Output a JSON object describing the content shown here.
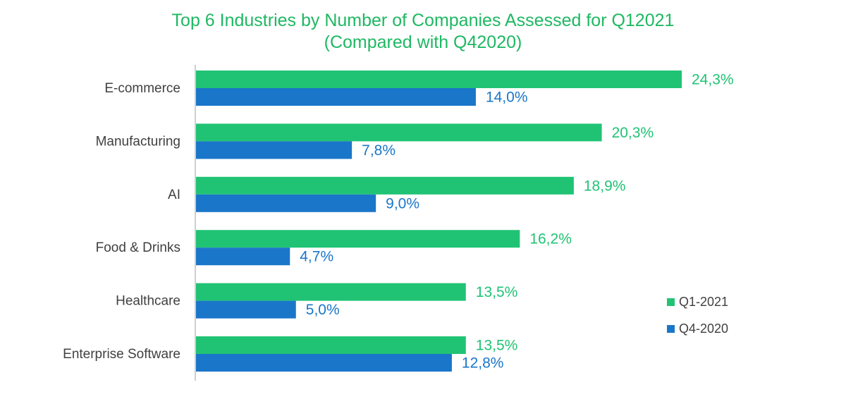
{
  "title_line1": "Top 6 Industries by Number of Companies Assessed for Q12021",
  "title_line2": "(Compared with Q42020)",
  "colors": {
    "title": "#1FB863",
    "q1": "#20C374",
    "q4": "#1A76C9",
    "axis": "#BFBFBF",
    "label": "#404040"
  },
  "chart_data": {
    "type": "bar",
    "orientation": "horizontal",
    "categories": [
      "E-commerce",
      "Manufacturing",
      "AI",
      "Food & Drinks",
      "Healthcare",
      "Enterprise Software"
    ],
    "series": [
      {
        "name": "Q1-2021",
        "values": [
          24.3,
          20.3,
          18.9,
          16.2,
          13.5,
          13.5
        ],
        "labels": [
          "24,3%",
          "20,3%",
          "18,9%",
          "16,2%",
          "13,5%",
          "13,5%"
        ]
      },
      {
        "name": "Q4-2020",
        "values": [
          14.0,
          7.8,
          9.0,
          4.7,
          5.0,
          12.8
        ],
        "labels": [
          "14,0%",
          "7,8%",
          "9,0%",
          "4,7%",
          "5,0%",
          "12,8%"
        ]
      }
    ],
    "xlim": [
      0,
      30
    ],
    "grid": false,
    "legend_position": "right"
  }
}
